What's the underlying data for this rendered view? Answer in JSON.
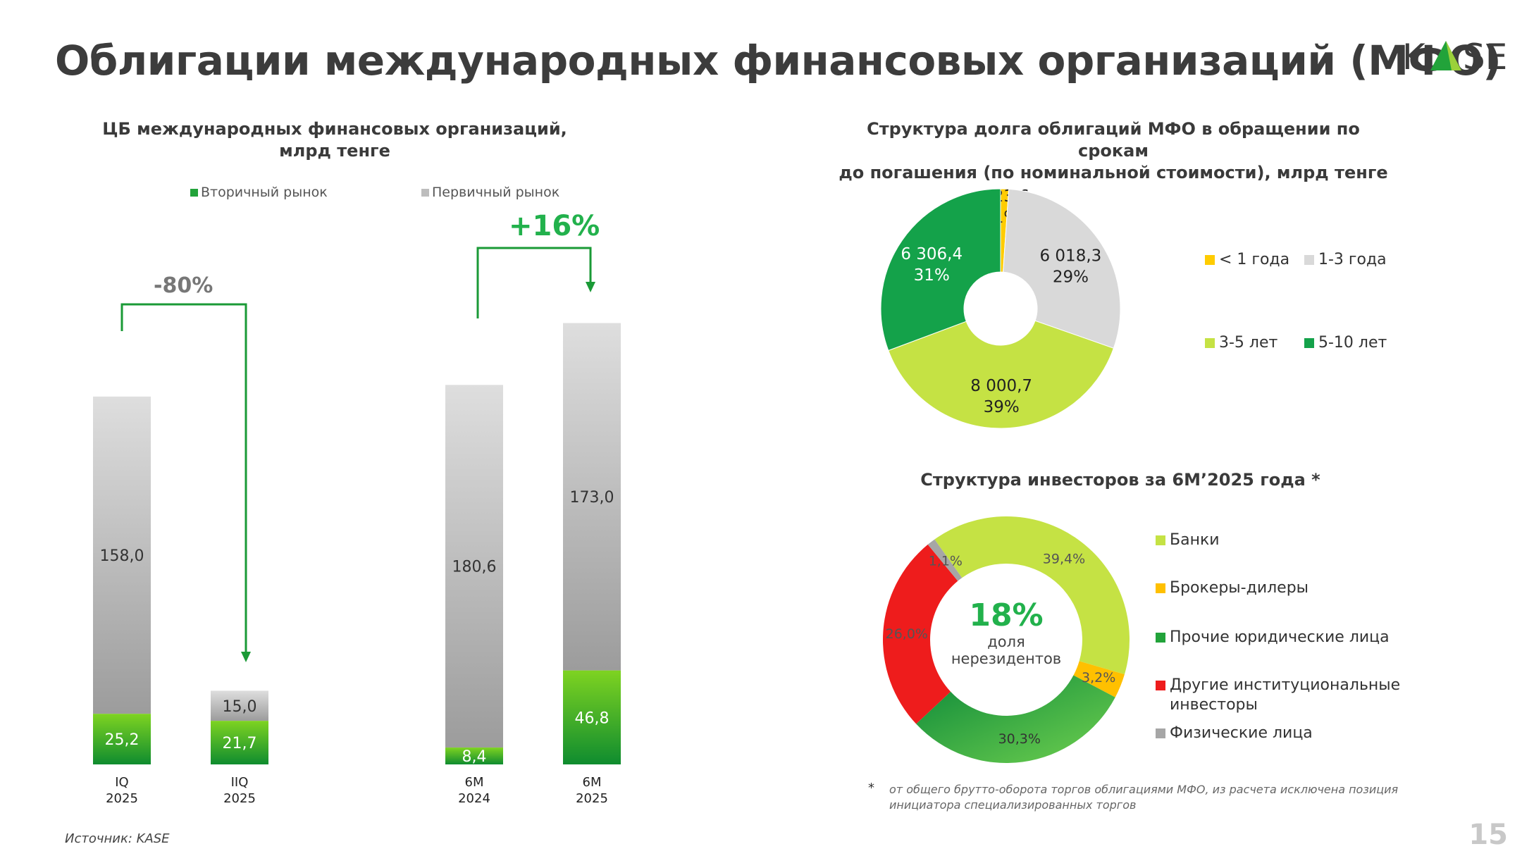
{
  "title": "Облигации международных финансовых организаций (МФО)",
  "logo": {
    "text_left": "K",
    "text_right": "SE"
  },
  "colors": {
    "secondary_market": "#22a33a",
    "primary_market": "#bdbdbd",
    "lt1": "#ffcc00",
    "y1_3": "#d9d9d9",
    "y3_5": "#c5e244",
    "y5_10": "#14a24a",
    "banks": "#c5e244",
    "brokers": "#ffc000",
    "other_legal": "#22a33a",
    "institutional": "#ee1c1c",
    "individuals": "#a6a6a6",
    "title_text": "#3c3c3c",
    "accent_green": "#22b14c"
  },
  "bar_chart": {
    "title_line1": "ЦБ международных финансовых организаций,",
    "title_line2": "млрд тенге",
    "legend": {
      "secondary": "Вторичный рынок",
      "primary": "Первичный рынок"
    },
    "annotations": {
      "left": "-80%",
      "right": "+16%"
    }
  },
  "donut_maturity": {
    "title_line1": "Структура долга облигаций МФО в обращении по срокам",
    "title_line2": "до погашения (по номинальной стоимости), млрд тенге",
    "legend": [
      "< 1 года",
      "1-3 года",
      "3-5 лет",
      "5-10 лет"
    ]
  },
  "donut_investors": {
    "title": "Структура инвесторов за 6М’2025 года *",
    "center_value": "18%",
    "center_label_line1": "доля",
    "center_label_line2": "нерезидентов",
    "legend": [
      "Банки",
      "Брокеры-дилеры",
      "Прочие юридические лица",
      "Другие институциональные",
      "инвесторы",
      "Физические лица"
    ]
  },
  "footnote_star": "*",
  "footnote_line1": "от общего брутто-оборота торгов облигациями МФО, из расчета исключена позиция",
  "footnote_line2": "инициатора специализированных торгов",
  "source_label": "Источник:",
  "source_value": "KASE",
  "page_number": "15",
  "chart_data": [
    {
      "type": "bar",
      "stacked": true,
      "categories": [
        [
          "IQ",
          "2025"
        ],
        [
          "IIQ",
          "2025"
        ],
        [
          "6M",
          "2024"
        ],
        [
          "6M",
          "2025"
        ]
      ],
      "series": [
        {
          "name": "Вторичный рынок",
          "values": [
            25.2,
            21.7,
            8.4,
            46.8
          ],
          "labels": [
            "25,2",
            "21,7",
            "8,4",
            "46,8"
          ]
        },
        {
          "name": "Первичный рынок",
          "values": [
            158.0,
            15.0,
            180.6,
            173.0
          ],
          "labels": [
            "158,0",
            "15,0",
            "180,6",
            "173,0"
          ]
        }
      ]
    },
    {
      "type": "pie",
      "donut": true,
      "slices": [
        {
          "name": "< 1 года",
          "value": 223.6,
          "label": "223,6",
          "pct": "1%"
        },
        {
          "name": "1-3 года",
          "value": 6018.3,
          "label": "6 018,3",
          "pct": "29%"
        },
        {
          "name": "3-5 лет",
          "value": 8000.7,
          "label": "8 000,7",
          "pct": "39%"
        },
        {
          "name": "5-10 лет",
          "value": 6306.4,
          "label": "6 306,4",
          "pct": "31%"
        }
      ],
      "legend_position": "right"
    },
    {
      "type": "pie",
      "donut": true,
      "slices": [
        {
          "name": "Банки",
          "value": 39.4,
          "label": "39,4%"
        },
        {
          "name": "Брокеры-дилеры",
          "value": 3.2,
          "label": "3,2%"
        },
        {
          "name": "Прочие юридические лица",
          "value": 30.3,
          "label": "30,3%"
        },
        {
          "name": "Другие институциональные инвесторы",
          "value": 26.0,
          "label": "26,0%"
        },
        {
          "name": "Физические лица",
          "value": 1.1,
          "label": "1,1%"
        }
      ],
      "legend_position": "right"
    }
  ]
}
